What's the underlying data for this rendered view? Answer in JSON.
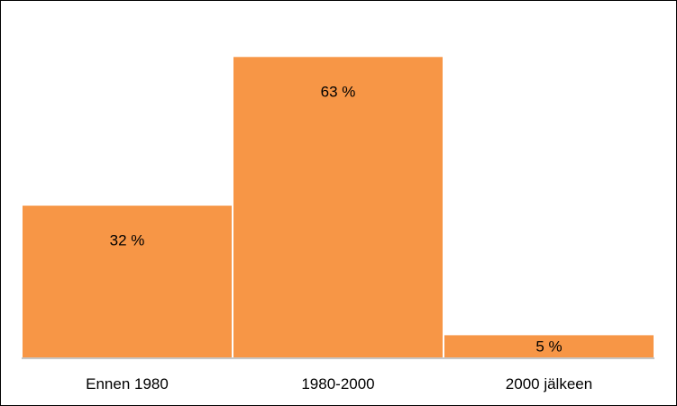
{
  "chart_data": {
    "type": "bar",
    "categories": [
      "Ennen 1980",
      "1980-2000",
      "2000 jälkeen"
    ],
    "values": [
      32,
      63,
      5
    ],
    "data_labels": [
      "32 %",
      "63 %",
      "5 %"
    ],
    "title": "",
    "xlabel": "",
    "ylabel": "",
    "ylim": [
      0,
      70
    ],
    "grid": false,
    "legend": "none",
    "bar_color": "#F79646",
    "bar_gap_color": "#ffffff"
  }
}
